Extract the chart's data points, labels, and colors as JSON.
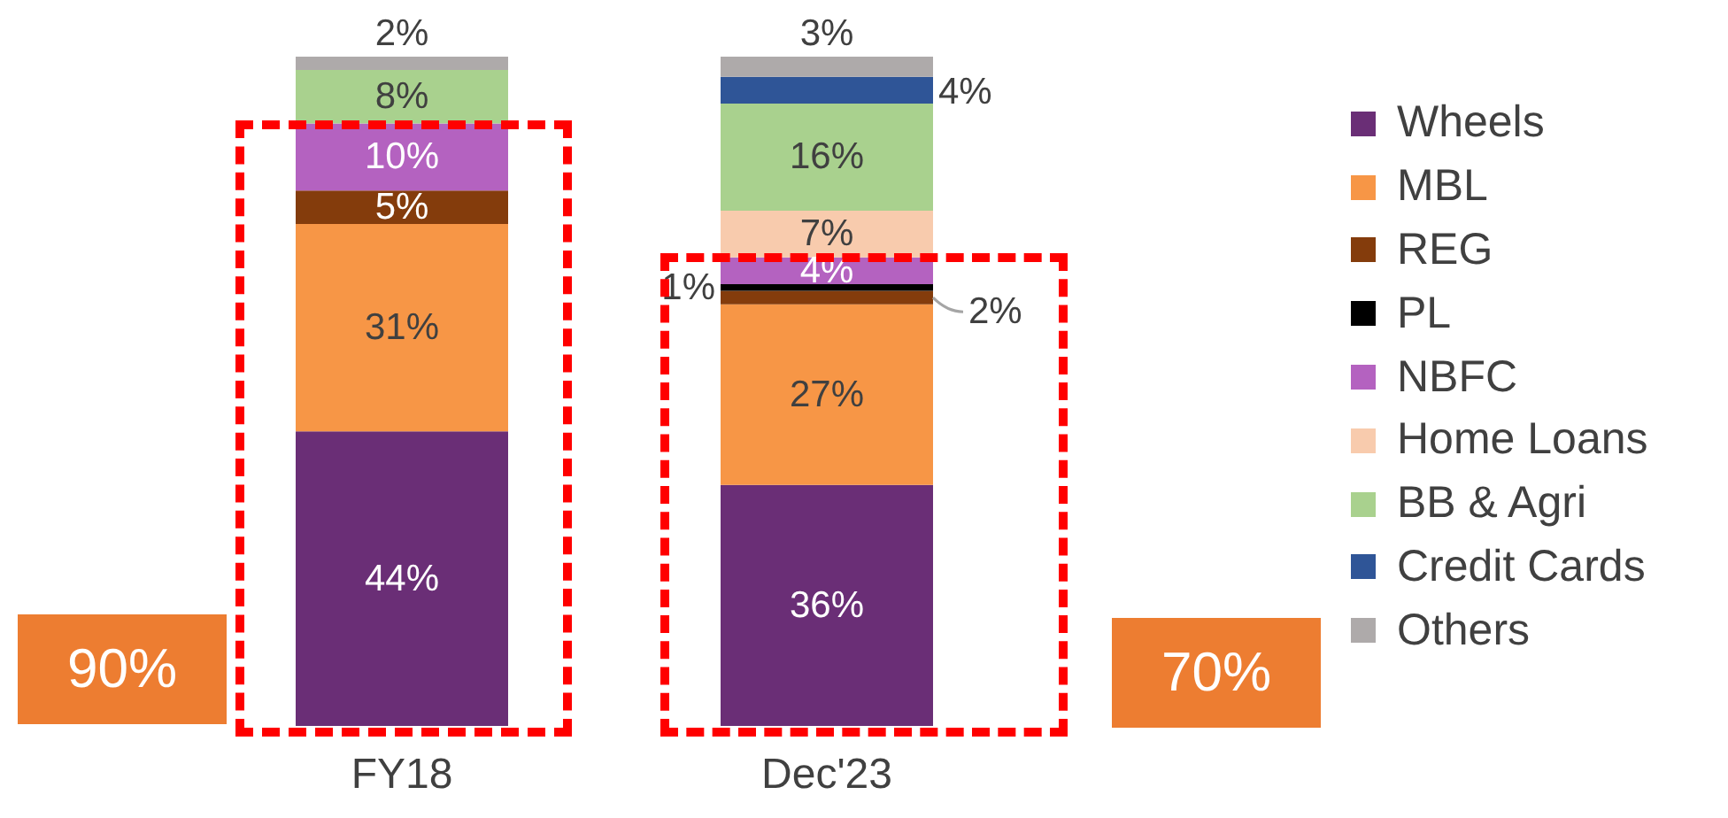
{
  "chart_data": {
    "type": "bar",
    "stacked": true,
    "legend": "right",
    "categories": [
      "FY18",
      "Dec'23"
    ],
    "series": [
      {
        "name": "Wheels",
        "color": "#6a2e76",
        "values": [
          44,
          36
        ],
        "value_labels": [
          "44%",
          "36%"
        ]
      },
      {
        "name": "MBL",
        "color": "#f79646",
        "values": [
          31,
          27
        ],
        "value_labels": [
          "31%",
          "27%"
        ]
      },
      {
        "name": "REG",
        "color": "#843c0c",
        "values": [
          5,
          2
        ],
        "value_labels": [
          "5%",
          "2%"
        ]
      },
      {
        "name": "PL",
        "color": "#000000",
        "values": [
          0,
          1
        ],
        "value_labels": [
          null,
          "1%"
        ]
      },
      {
        "name": "NBFC",
        "color": "#b462c0",
        "values": [
          10,
          4
        ],
        "value_labels": [
          "10%",
          "4%"
        ]
      },
      {
        "name": "Home Loans",
        "color": "#f8cbad",
        "values": [
          0,
          7
        ],
        "value_labels": [
          null,
          "7%"
        ]
      },
      {
        "name": "BB & Agri",
        "color": "#a9d18e",
        "values": [
          8,
          16
        ],
        "value_labels": [
          "8%",
          "16%"
        ]
      },
      {
        "name": "Credit Cards",
        "color": "#2f5597",
        "values": [
          0,
          4
        ],
        "value_labels": [
          null,
          "4%"
        ]
      },
      {
        "name": "Others",
        "color": "#aeaaaa",
        "values": [
          2,
          3
        ],
        "value_labels": [
          "2%",
          "3%"
        ]
      }
    ],
    "annotations": [
      "90%",
      "70%"
    ]
  }
}
